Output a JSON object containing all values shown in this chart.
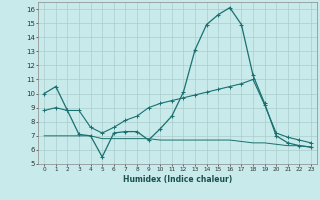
{
  "xlabel": "Humidex (Indice chaleur)",
  "background_color": "#c8eaea",
  "grid_color": "#aacccc",
  "line_color": "#1a7070",
  "xlim": [
    -0.5,
    23.5
  ],
  "ylim": [
    5,
    16.5
  ],
  "yticks": [
    5,
    6,
    7,
    8,
    9,
    10,
    11,
    12,
    13,
    14,
    15,
    16
  ],
  "xticks": [
    0,
    1,
    2,
    3,
    4,
    5,
    6,
    7,
    8,
    9,
    10,
    11,
    12,
    13,
    14,
    15,
    16,
    17,
    18,
    19,
    20,
    21,
    22,
    23
  ],
  "curve1_x": [
    0,
    1,
    2,
    3,
    4,
    5,
    6,
    7,
    8,
    9,
    10,
    11,
    12,
    13,
    14,
    15,
    16,
    17,
    18,
    19,
    20,
    21,
    22,
    23
  ],
  "curve1_y": [
    10.0,
    10.5,
    8.8,
    7.1,
    7.0,
    5.5,
    7.2,
    7.3,
    7.3,
    6.7,
    7.5,
    8.4,
    10.1,
    13.1,
    14.9,
    15.6,
    16.1,
    14.9,
    11.3,
    9.3,
    7.0,
    6.5,
    6.3,
    6.2
  ],
  "curve2_x": [
    0,
    1,
    2,
    3,
    4,
    5,
    6,
    7,
    8,
    9,
    10,
    11,
    12,
    13,
    14,
    15,
    16,
    17,
    18,
    19,
    20,
    21,
    22,
    23
  ],
  "curve2_y": [
    8.8,
    9.0,
    8.8,
    8.8,
    7.6,
    7.2,
    7.6,
    8.1,
    8.4,
    9.0,
    9.3,
    9.5,
    9.7,
    9.9,
    10.1,
    10.3,
    10.5,
    10.7,
    11.0,
    9.2,
    7.2,
    6.9,
    6.7,
    6.5
  ],
  "curve3_x": [
    0,
    1,
    2,
    3,
    4,
    5,
    6,
    7,
    8,
    9,
    10,
    11,
    12,
    13,
    14,
    15,
    16,
    17,
    18,
    19,
    20,
    21,
    22,
    23
  ],
  "curve3_y": [
    7.0,
    7.0,
    7.0,
    7.0,
    7.0,
    6.8,
    6.8,
    6.8,
    6.8,
    6.8,
    6.7,
    6.7,
    6.7,
    6.7,
    6.7,
    6.7,
    6.7,
    6.6,
    6.5,
    6.5,
    6.4,
    6.3,
    6.3,
    6.2
  ]
}
